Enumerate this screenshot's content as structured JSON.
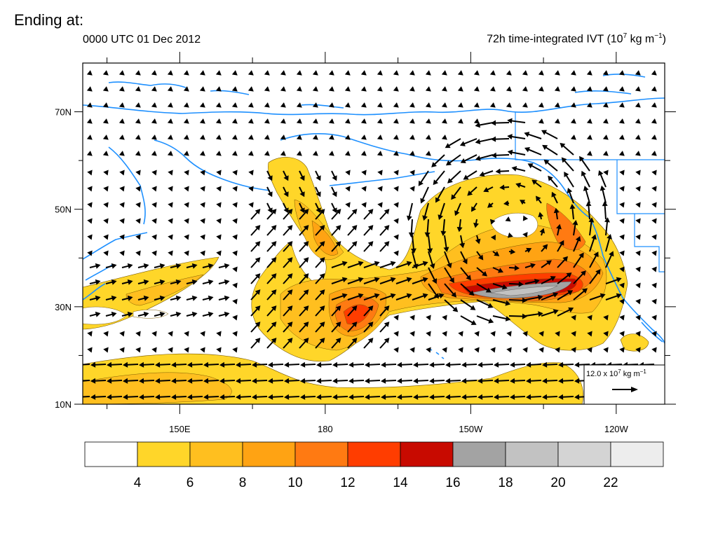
{
  "slide": {
    "title": "Ending at:"
  },
  "figure": {
    "valid_time": "0000 UTC 01 Dec 2012",
    "field_title_prefix": "72h time-integrated IVT (10",
    "field_title_exp1": "7",
    "field_title_mid": " kg m",
    "field_title_exp2": "−1",
    "field_title_suffix": ")"
  },
  "axes": {
    "lat_labels": [
      "70N",
      "50N",
      "30N",
      "10N"
    ],
    "lon_labels": [
      "150E",
      "180",
      "150W",
      "120W"
    ],
    "lat_range": [
      10,
      80
    ],
    "lon_range": [
      130,
      250
    ]
  },
  "reference_vector": {
    "value": "12.0",
    "unit_prefix": " x 10",
    "unit_exp1": "7",
    "unit_mid": " kg m",
    "unit_exp2": "−1"
  },
  "colorbar": {
    "labels": [
      "4",
      "6",
      "8",
      "10",
      "12",
      "14",
      "16",
      "18",
      "20",
      "22"
    ],
    "colors": [
      "#ffffff",
      "#ffd629",
      "#ffbf1f",
      "#ffa313",
      "#ff7a12",
      "#ff3d00",
      "#c80a00",
      "#a3a3a3",
      "#c2c2c2",
      "#d4d4d4",
      "#ededed"
    ]
  },
  "colors": {
    "coastline": "#1e90ff",
    "vectors": "#000000"
  }
}
